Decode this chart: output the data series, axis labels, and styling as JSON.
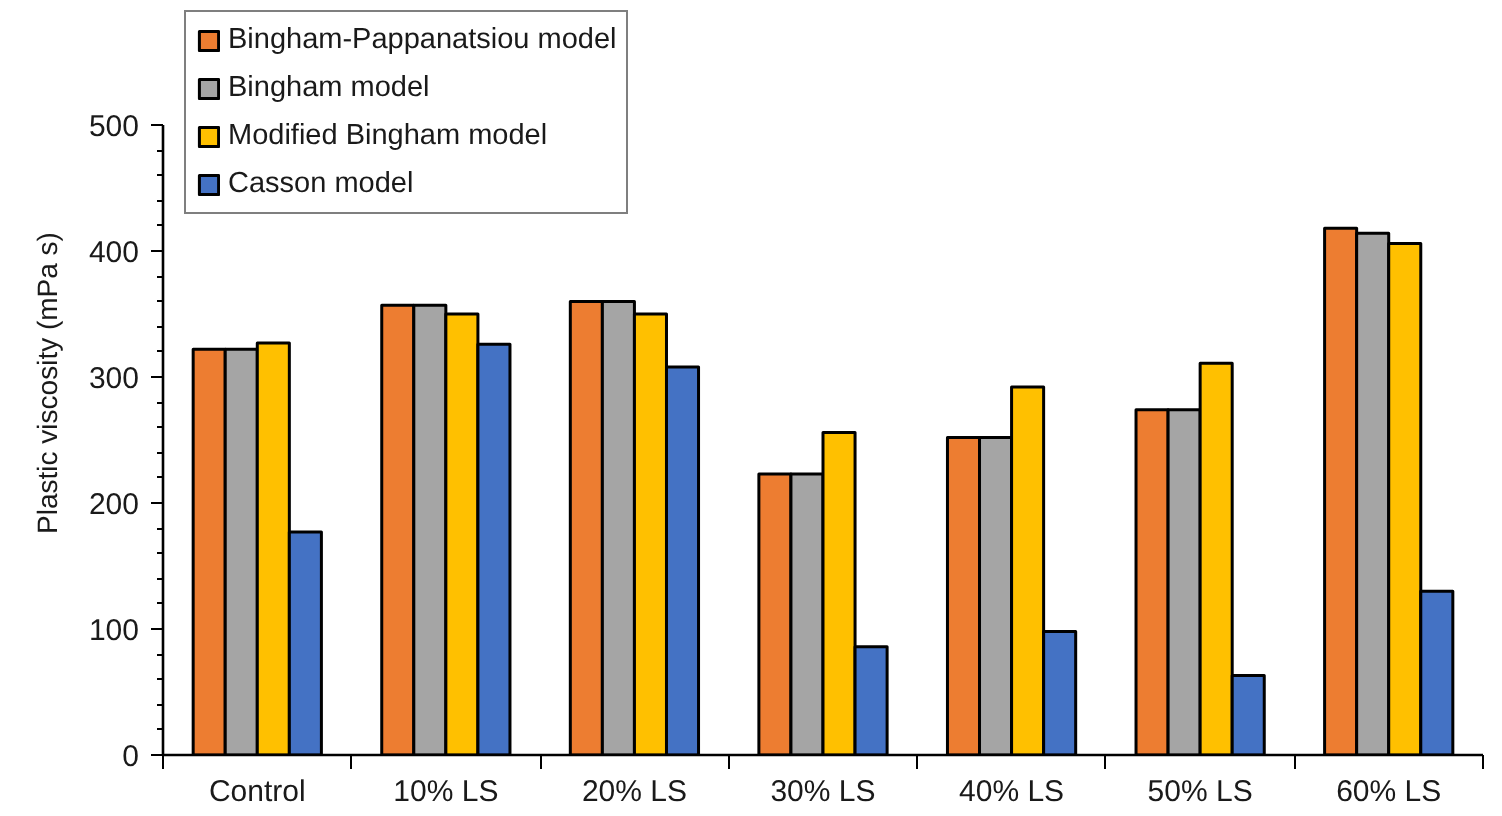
{
  "chart_data": {
    "type": "bar",
    "ylabel": "Plastic viscosity (mPa s)",
    "categories": [
      "Control",
      "10% LS",
      "20% LS",
      "30% LS",
      "40% LS",
      "50% LS",
      "60% LS"
    ],
    "series": [
      {
        "name": "Bingham-Pappanatsiou model",
        "color": "#ed7d31",
        "values": [
          322,
          357,
          360,
          223,
          252,
          274,
          418
        ]
      },
      {
        "name": "Bingham model",
        "color": "#a5a5a5",
        "values": [
          322,
          357,
          360,
          223,
          252,
          274,
          414
        ]
      },
      {
        "name": "Modified Bingham model",
        "color": "#ffc000",
        "values": [
          327,
          350,
          350,
          256,
          292,
          311,
          406
        ]
      },
      {
        "name": "Casson model",
        "color": "#4472c4",
        "values": [
          177,
          326,
          308,
          86,
          98,
          63,
          130
        ]
      }
    ],
    "ylim": [
      0,
      500
    ],
    "yticks": [
      0,
      {
        "value": 20,
        "label": null
      },
      {
        "value": 40,
        "label": null
      },
      {
        "value": 60,
        "label": null
      },
      {
        "value": 80,
        "label": null
      },
      100,
      {
        "value": 120,
        "label": null
      },
      {
        "value": 140,
        "label": null
      },
      {
        "value": 160,
        "label": null
      },
      {
        "value": 180,
        "label": null
      },
      200,
      {
        "value": 220,
        "label": null
      },
      {
        "value": 240,
        "label": null
      },
      {
        "value": 260,
        "label": null
      },
      {
        "value": 280,
        "label": null
      },
      300,
      {
        "value": 320,
        "label": null
      },
      {
        "value": 340,
        "label": null
      },
      {
        "value": 360,
        "label": null
      },
      {
        "value": 380,
        "label": null
      },
      400,
      {
        "value": 420,
        "label": null
      },
      {
        "value": 440,
        "label": null
      },
      {
        "value": 460,
        "label": null
      },
      {
        "value": 480,
        "label": null
      },
      500
    ],
    "legend": "top left",
    "grid": false
  }
}
